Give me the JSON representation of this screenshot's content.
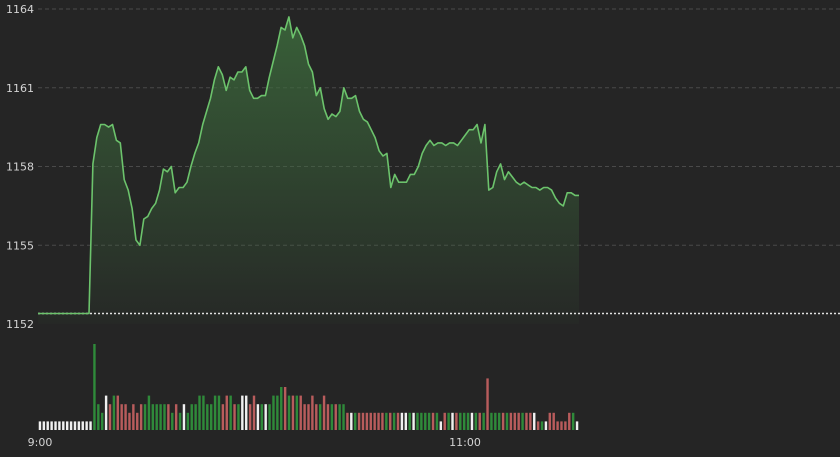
{
  "chart_data": {
    "type": "line",
    "title": "",
    "xlabel": "",
    "ylabel": "",
    "x_tick_labels": [
      "9:00",
      "11:00"
    ],
    "y_tick_labels": [
      "1164",
      "1161",
      "1158",
      "1155",
      "1152"
    ],
    "ylim": [
      1152,
      1164
    ],
    "reference_line": 1152.4,
    "grid": true,
    "legend": "none",
    "colors": {
      "background": "#252525",
      "line": "#6cc36c",
      "area_top": "#3c6a3c",
      "grid": "#4a4a4a",
      "text": "#d4d4d4",
      "reference_line": "#e0e0e0",
      "volume_up": "#2f8a3a",
      "volume_down": "#b85c5c",
      "volume_flat": "#f0f0f0"
    },
    "price_series": {
      "name": "",
      "start": "9:00",
      "end": "11:00",
      "values": [
        1152.4,
        1152.4,
        1152.4,
        1152.4,
        1152.4,
        1152.4,
        1152.4,
        1152.4,
        1152.4,
        1152.4,
        1152.4,
        1152.4,
        1152.4,
        1152.4,
        1158.1,
        1159.1,
        1159.6,
        1159.6,
        1159.5,
        1159.6,
        1159.0,
        1158.9,
        1157.5,
        1157.1,
        1156.4,
        1155.2,
        1155.0,
        1156.0,
        1156.1,
        1156.4,
        1156.6,
        1157.1,
        1157.9,
        1157.8,
        1158.0,
        1157.0,
        1157.2,
        1157.2,
        1157.4,
        1158.0,
        1158.5,
        1158.9,
        1159.6,
        1160.1,
        1160.6,
        1161.3,
        1161.8,
        1161.5,
        1160.9,
        1161.4,
        1161.3,
        1161.6,
        1161.6,
        1161.8,
        1160.9,
        1160.6,
        1160.6,
        1160.7,
        1160.7,
        1161.4,
        1162.0,
        1162.6,
        1163.3,
        1163.2,
        1163.7,
        1162.9,
        1163.3,
        1163.0,
        1162.6,
        1161.9,
        1161.6,
        1160.7,
        1161.0,
        1160.2,
        1159.8,
        1160.0,
        1159.9,
        1160.1,
        1161.0,
        1160.6,
        1160.6,
        1160.7,
        1160.1,
        1159.8,
        1159.7,
        1159.4,
        1159.1,
        1158.6,
        1158.4,
        1158.5,
        1157.2,
        1157.7,
        1157.4,
        1157.4,
        1157.4,
        1157.7,
        1157.7,
        1158.0,
        1158.5,
        1158.8,
        1159.0,
        1158.8,
        1158.9,
        1158.9,
        1158.8,
        1158.9,
        1158.9,
        1158.8,
        1159.0,
        1159.2,
        1159.4,
        1159.4,
        1159.6,
        1158.9,
        1159.6,
        1157.1,
        1157.2,
        1157.8,
        1158.1,
        1157.5,
        1157.8,
        1157.6,
        1157.4,
        1157.3,
        1157.4,
        1157.3,
        1157.2,
        1157.2,
        1157.1,
        1157.2,
        1157.2,
        1157.1,
        1156.8,
        1156.6,
        1156.5,
        1157.0,
        1157.0,
        1156.9,
        1156.9
      ]
    },
    "volume_series": {
      "name": "",
      "values": [
        0.1,
        0.1,
        0.1,
        0.1,
        0.1,
        0.1,
        0.1,
        0.1,
        0.1,
        0.1,
        0.1,
        0.1,
        0.1,
        0.1,
        1.0,
        0.3,
        0.2,
        0.4,
        0.3,
        0.4,
        0.4,
        0.3,
        0.3,
        0.2,
        0.3,
        0.2,
        0.3,
        0.3,
        0.4,
        0.3,
        0.3,
        0.3,
        0.3,
        0.3,
        0.2,
        0.3,
        0.2,
        0.3,
        0.2,
        0.3,
        0.3,
        0.4,
        0.4,
        0.3,
        0.3,
        0.4,
        0.4,
        0.3,
        0.4,
        0.4,
        0.3,
        0.3,
        0.4,
        0.4,
        0.3,
        0.4,
        0.3,
        0.3,
        0.3,
        0.3,
        0.4,
        0.4,
        0.5,
        0.5,
        0.4,
        0.4,
        0.4,
        0.4,
        0.3,
        0.3,
        0.4,
        0.3,
        0.3,
        0.4,
        0.3,
        0.3,
        0.3,
        0.3,
        0.3,
        0.2,
        0.2,
        0.2,
        0.2,
        0.2,
        0.2,
        0.2,
        0.2,
        0.2,
        0.2,
        0.2,
        0.2,
        0.2,
        0.2,
        0.2,
        0.2,
        0.2,
        0.2,
        0.2,
        0.2,
        0.2,
        0.2,
        0.2,
        0.2,
        0.1,
        0.2,
        0.2,
        0.2,
        0.2,
        0.2,
        0.2,
        0.2,
        0.2,
        0.2,
        0.2,
        0.2,
        0.6,
        0.2,
        0.2,
        0.2,
        0.2,
        0.2,
        0.2,
        0.2,
        0.2,
        0.2,
        0.2,
        0.2,
        0.2,
        0.1,
        0.1,
        0.1,
        0.2,
        0.2,
        0.1,
        0.1,
        0.1,
        0.2,
        0.2,
        0.1
      ],
      "directions": [
        "flat",
        "flat",
        "flat",
        "flat",
        "flat",
        "flat",
        "flat",
        "flat",
        "flat",
        "flat",
        "flat",
        "flat",
        "flat",
        "flat",
        "up",
        "up",
        "up",
        "flat",
        "down",
        "up",
        "down",
        "down",
        "down",
        "down",
        "down",
        "down",
        "down",
        "up",
        "up",
        "up",
        "up",
        "up",
        "up",
        "down",
        "up",
        "down",
        "up",
        "flat",
        "up",
        "up",
        "up",
        "up",
        "up",
        "up",
        "up",
        "up",
        "up",
        "down",
        "down",
        "up",
        "down",
        "up",
        "flat",
        "flat",
        "down",
        "down",
        "flat",
        "up",
        "flat",
        "up",
        "up",
        "up",
        "up",
        "down",
        "up",
        "down",
        "up",
        "down",
        "down",
        "down",
        "down",
        "down",
        "up",
        "down",
        "down",
        "up",
        "down",
        "up",
        "up",
        "down",
        "flat",
        "up",
        "down",
        "down",
        "down",
        "down",
        "down",
        "down",
        "down",
        "up",
        "down",
        "up",
        "down",
        "flat",
        "flat",
        "up",
        "flat",
        "up",
        "up",
        "up",
        "up",
        "down",
        "up",
        "flat",
        "down",
        "up",
        "flat",
        "down",
        "up",
        "up",
        "up",
        "flat",
        "up",
        "down",
        "up",
        "down",
        "up",
        "up",
        "up",
        "down",
        "up",
        "down",
        "down",
        "down",
        "up",
        "down",
        "down",
        "flat",
        "down",
        "up",
        "flat",
        "down",
        "down",
        "down",
        "down",
        "down",
        "down",
        "up",
        "flat",
        "down",
        "flat"
      ]
    }
  }
}
